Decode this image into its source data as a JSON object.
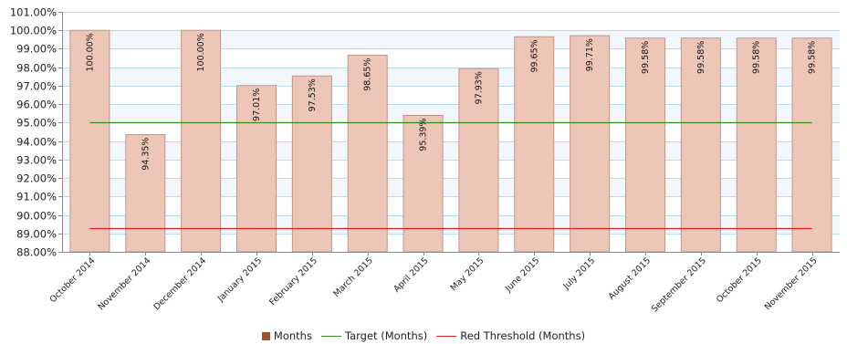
{
  "chart_data": {
    "type": "bar",
    "categories": [
      "October 2014",
      "November 2014",
      "December 2014",
      "January 2015",
      "February 2015",
      "March 2015",
      "April 2015",
      "May 2015",
      "June 2015",
      "July 2015",
      "August 2015",
      "September 2015",
      "October 2015",
      "November 2015"
    ],
    "series": [
      {
        "name": "Months",
        "type": "bar",
        "color": "#a0522d",
        "values": [
          100.0,
          94.35,
          100.0,
          97.01,
          97.53,
          98.65,
          95.39,
          97.93,
          99.65,
          99.71,
          99.58,
          99.58,
          99.58,
          99.58
        ],
        "labels": [
          "100.00%",
          "94.35%",
          "100.00%",
          "97.01%",
          "97.53%",
          "98.65%",
          "95.39%",
          "97.93%",
          "99.65%",
          "99.71%",
          "99.58%",
          "99.58%",
          "99.58%",
          "99.58%"
        ]
      },
      {
        "name": "Target (Months)",
        "type": "line",
        "color": "#3a8a1e",
        "value": 95.0
      },
      {
        "name": "Red Threshold (Months)",
        "type": "line",
        "color": "#e02020",
        "value": 89.3
      }
    ],
    "ylim": [
      88,
      101
    ],
    "yticks": [
      {
        "value": 101,
        "label": "101.00%"
      },
      {
        "value": 100,
        "label": "100.00%"
      },
      {
        "value": 99,
        "label": "99.00%"
      },
      {
        "value": 98,
        "label": "98.00%"
      },
      {
        "value": 97,
        "label": "97.00%"
      },
      {
        "value": 96,
        "label": "96.00%"
      },
      {
        "value": 95,
        "label": "95.00%"
      },
      {
        "value": 94,
        "label": "94.00%"
      },
      {
        "value": 93,
        "label": "93.00%"
      },
      {
        "value": 92,
        "label": "92.00%"
      },
      {
        "value": 91,
        "label": "91.00%"
      },
      {
        "value": 90,
        "label": "90.00%"
      },
      {
        "value": 89,
        "label": "89.00%"
      },
      {
        "value": 88,
        "label": "88.00%"
      }
    ],
    "grid": true,
    "legend_position": "bottom-center",
    "bar_fill": "#edc6b8",
    "bar_stroke": "#c0958a"
  }
}
